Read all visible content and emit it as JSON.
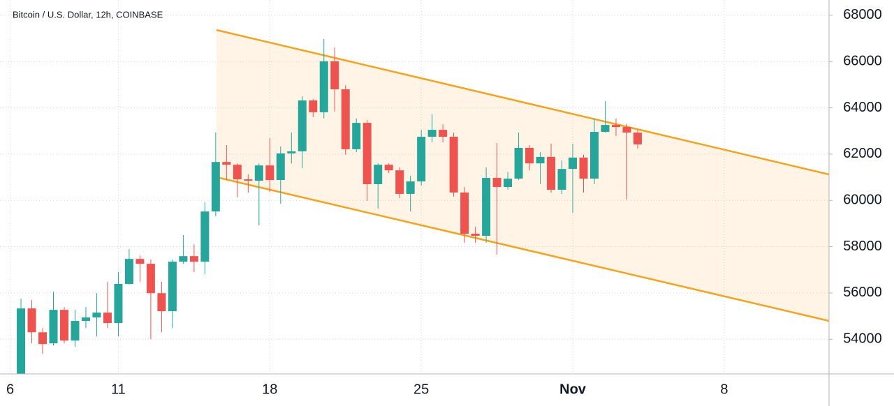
{
  "chart_data": {
    "type": "candlestick",
    "title": "Bitcoin / U.S. Dollar, 12h, COINBASE",
    "categories": [
      "6",
      null,
      null,
      null,
      null,
      null,
      null,
      null,
      null,
      null,
      "11",
      null,
      null,
      null,
      null,
      null,
      null,
      null,
      null,
      null,
      null,
      null,
      null,
      null,
      "18",
      null,
      null,
      null,
      null,
      null,
      null,
      null,
      null,
      null,
      null,
      null,
      null,
      null,
      "25",
      null,
      null,
      null,
      null,
      null,
      null,
      null,
      null,
      null,
      null,
      null,
      null,
      null,
      "Nov",
      null,
      null,
      null,
      null,
      null,
      null,
      null,
      null,
      null,
      null,
      null,
      null,
      null,
      "8",
      null,
      null,
      null,
      null,
      null,
      null,
      null,
      null,
      null
    ],
    "open": [
      null,
      52300,
      55330,
      54300,
      53820,
      55270,
      53940,
      54790,
      54940,
      55150,
      54700,
      56390,
      57470,
      57260,
      55990,
      55210,
      57350,
      57590,
      57350,
      59520,
      61660,
      61540,
      60910,
      60850,
      61510,
      60880,
      62030,
      62120,
      64320,
      63810,
      66010,
      64800,
      62210,
      63350,
      60700,
      61540,
      61300,
      60280,
      60820,
      62750,
      63050,
      62750,
      60340,
      58560,
      58470,
      60970,
      60580,
      60940,
      62270,
      61600,
      61880,
      60460,
      61360,
      61850,
      60940,
      62960,
      63260,
      63170,
      62930,
      null,
      null,
      null,
      null,
      null,
      null,
      null,
      null,
      null,
      null,
      null,
      null,
      null,
      null,
      null,
      null,
      null
    ],
    "high": [
      null,
      55750,
      55690,
      54480,
      56050,
      55390,
      55270,
      55390,
      55990,
      56480,
      56900,
      57890,
      57620,
      57440,
      56480,
      57440,
      58500,
      58100,
      59920,
      62930,
      62390,
      61600,
      61120,
      61600,
      62690,
      62330,
      62930,
      64500,
      64380,
      66970,
      66610,
      64980,
      63540,
      63480,
      61600,
      61600,
      61420,
      61060,
      63050,
      63720,
      63290,
      62930,
      60580,
      58860,
      61420,
      62480,
      61240,
      62930,
      62390,
      62090,
      62450,
      61730,
      62450,
      61970,
      63540,
      64290,
      63540,
      63290,
      63050,
      null,
      null,
      null,
      null,
      null,
      null,
      null,
      null,
      null,
      null,
      null,
      null,
      null,
      null,
      null,
      null,
      null
    ],
    "low": [
      null,
      52000,
      53820,
      53370,
      53730,
      53820,
      53670,
      54480,
      54120,
      54480,
      54120,
      56360,
      56480,
      54000,
      54300,
      54480,
      57260,
      56900,
      56810,
      59310,
      60880,
      60130,
      60340,
      58920,
      60370,
      59850,
      61600,
      61390,
      63600,
      63540,
      63840,
      61970,
      62090,
      59980,
      59640,
      61180,
      60100,
      59520,
      60640,
      62510,
      62510,
      60160,
      58170,
      58170,
      58170,
      57650,
      60460,
      60880,
      61300,
      60700,
      60340,
      60280,
      59460,
      60340,
      60700,
      62930,
      62780,
      60040,
      62240,
      null,
      null,
      null,
      null,
      null,
      null,
      null,
      null,
      null,
      null,
      null,
      null,
      null,
      null,
      null,
      null,
      null
    ],
    "close": [
      null,
      55330,
      54300,
      53790,
      55270,
      53940,
      54790,
      54940,
      55150,
      54700,
      56390,
      57470,
      57260,
      55990,
      55210,
      57350,
      57590,
      57350,
      59520,
      61660,
      61540,
      60910,
      60850,
      61510,
      60880,
      62030,
      62120,
      64320,
      63810,
      66010,
      64800,
      62210,
      63350,
      60700,
      61540,
      61300,
      60280,
      60820,
      62750,
      63050,
      62750,
      60340,
      58560,
      58470,
      60970,
      60580,
      60940,
      62270,
      61600,
      61880,
      60460,
      61360,
      61850,
      60940,
      62960,
      63260,
      63170,
      62930,
      62420,
      null,
      null,
      null,
      null,
      null,
      null,
      null,
      null,
      null,
      null,
      null,
      null,
      null,
      null,
      null,
      null,
      null
    ],
    "up_color": "#26a69a",
    "down_color": "#ef5350",
    "ylim": [
      52500,
      68660
    ],
    "yticks": [
      54000,
      56000,
      58000,
      60000,
      62000,
      64000,
      66000,
      68000
    ],
    "grid": true
  }
}
